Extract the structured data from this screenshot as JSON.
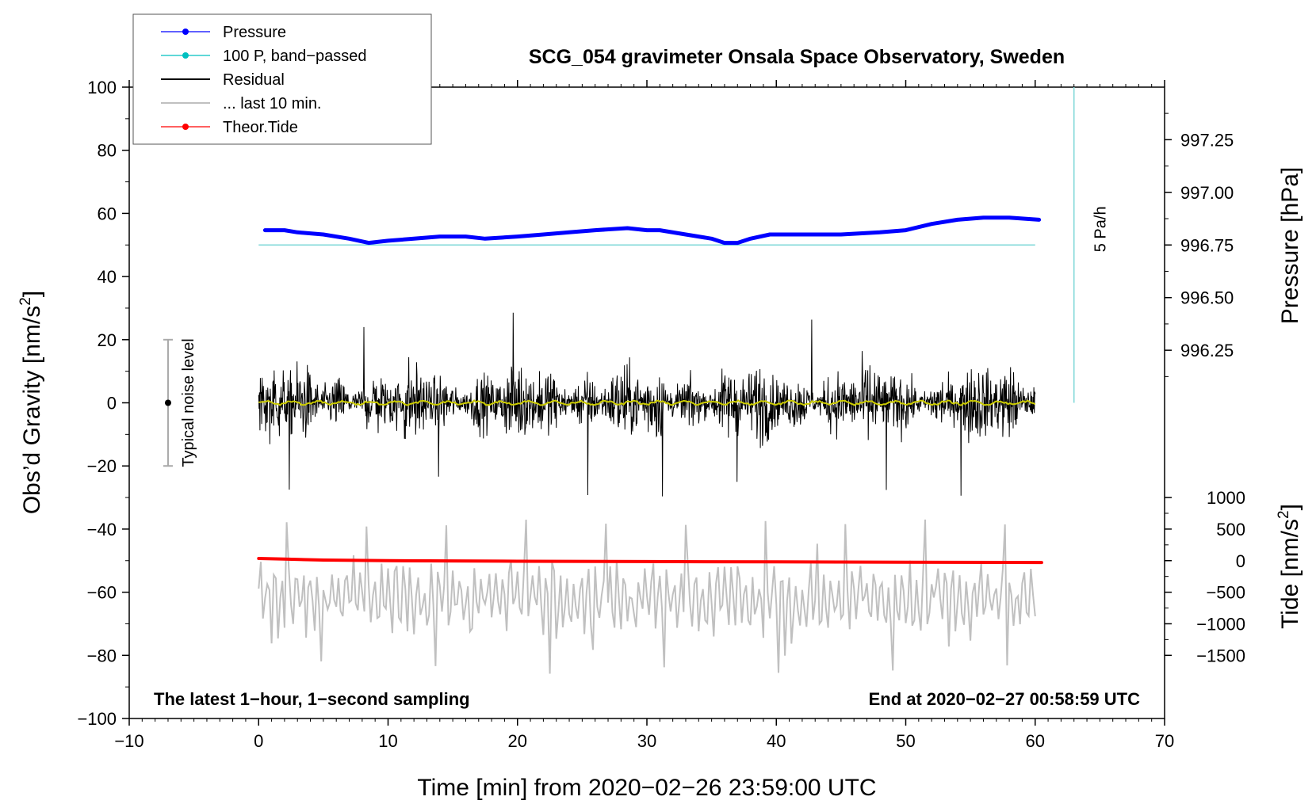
{
  "chart_data": {
    "type": "line",
    "title": "SCG_054 gravimeter Onsala Space Observatory, Sweden",
    "xlabel": "Time [min] from 2020−02−26 23:59:00 UTC",
    "ylabel_left": "Obs’d Gravity [nm/s",
    "ylabel_left_sup": "2",
    "ylabel_left_close": "]",
    "ylabel_right_pressure": "Pressure [hPa]",
    "ylabel_right_tide": "Tide [nm/s",
    "ylabel_right_tide_sup": "2",
    "ylabel_right_tide_close": "]",
    "xlim": [
      -10,
      70
    ],
    "ylim": [
      -100,
      100
    ],
    "x_ticks": [
      -10,
      0,
      10,
      20,
      30,
      40,
      50,
      60,
      70
    ],
    "x_tick_labels": [
      "−10",
      "0",
      "10",
      "20",
      "30",
      "40",
      "50",
      "60",
      "70"
    ],
    "y_ticks": [
      -100,
      -80,
      -60,
      -40,
      -20,
      0,
      20,
      40,
      60,
      80,
      100
    ],
    "y_tick_labels": [
      "−100",
      "−80",
      "−60",
      "−40",
      "−20",
      "0",
      "20",
      "40",
      "60",
      "80",
      "100"
    ],
    "pressure_axis": {
      "ticks": [
        996.25,
        996.5,
        996.75,
        997.0,
        997.25
      ],
      "labels": [
        "996.25",
        "996.50",
        "996.75",
        "997.00",
        "997.25"
      ],
      "gravity_at_996_75": 50,
      "gravity_per_hpa": 66.7
    },
    "tide_axis": {
      "ticks": [
        -1500,
        -1000,
        -500,
        0,
        500,
        1000
      ],
      "labels": [
        "−1500",
        "−1000",
        "−500",
        "0",
        "500",
        "1000"
      ],
      "gravity_at_0": -50,
      "gravity_per_unit": 0.02
    },
    "series": [
      {
        "name": "Pressure",
        "color": "#0000ff",
        "x": [
          0.5,
          2,
          3,
          5,
          7,
          8.5,
          10,
          12,
          14,
          16,
          17.5,
          20,
          22,
          24,
          26,
          28.5,
          30,
          31,
          33,
          35,
          36,
          37,
          38,
          39.5,
          42,
          45,
          48,
          50,
          52,
          54,
          56,
          58,
          60.3
        ],
        "values": [
          996.82,
          996.82,
          996.81,
          996.8,
          996.78,
          996.76,
          996.77,
          996.78,
          996.79,
          996.79,
          996.78,
          996.79,
          996.8,
          996.81,
          996.82,
          996.83,
          996.82,
          996.82,
          996.8,
          996.78,
          996.76,
          996.76,
          996.78,
          996.8,
          996.8,
          996.8,
          996.81,
          996.82,
          996.85,
          996.87,
          996.88,
          996.88,
          996.87
        ]
      },
      {
        "name": "100 P, band−passed",
        "color": "#00c0c0",
        "constant": 50,
        "x_range": [
          0,
          60
        ]
      },
      {
        "name": "Residual",
        "color": "#000000",
        "x_range": [
          0,
          60
        ],
        "typical_amplitude": 10,
        "min": -33,
        "max": 31
      },
      {
        "name": "... last 10 min.",
        "color": "#c0c0c0",
        "x_range": [
          0,
          60
        ],
        "center": -62,
        "min": -87,
        "max": -37
      },
      {
        "name": "Theor.Tide",
        "color": "#ff0000",
        "x": [
          0,
          2,
          5,
          10,
          20,
          30,
          40,
          50,
          60.5
        ],
        "values": [
          35,
          25,
          10,
          0,
          -10,
          -15,
          -20,
          -25,
          -30
        ]
      },
      {
        "name": "Residual mean",
        "color": "#cccc00",
        "x_range": [
          0,
          60
        ],
        "center": 0
      }
    ],
    "legend": [
      "Pressure",
      "100 P, band−passed",
      "Residual",
      "... last 10 min.",
      "Theor.Tide"
    ],
    "legend_position": "top-left",
    "noise_bar": {
      "label": "Typical noise level",
      "x": -7,
      "range": [
        -20,
        20
      ]
    },
    "rate_scale": {
      "label": "5 Pa/h",
      "x": 63,
      "range": [
        0,
        100
      ]
    },
    "annotation_left": "The latest 1−hour, 1−second sampling",
    "annotation_right": "End at 2020−02−27 00:58:59 UTC"
  }
}
